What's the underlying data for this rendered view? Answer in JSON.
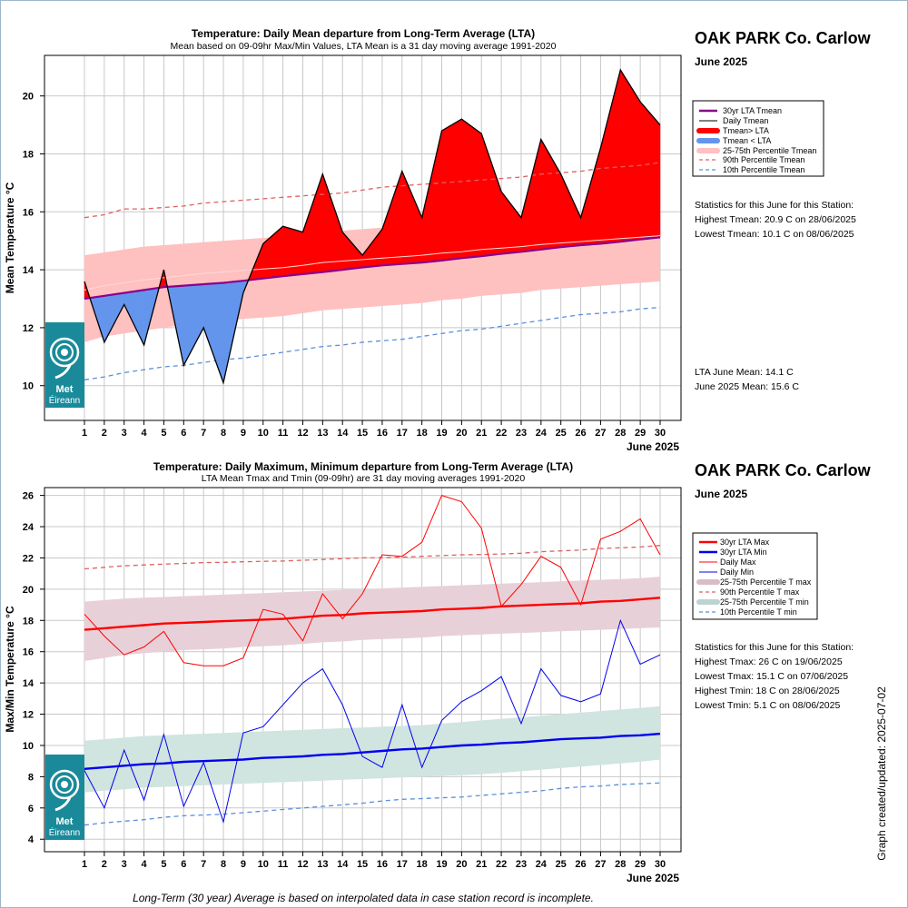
{
  "chart_data": [
    {
      "type": "line",
      "title": "Temperature: Daily Mean departure from Long-Term Average (LTA)",
      "subtitle": "Mean based on 09-09hr Max/Min Values, LTA Mean is a 31 day moving average 1991-2020",
      "ylabel": "Mean Temperature °C",
      "xlabel": "June 2025",
      "ylim": [
        8.8,
        21.4
      ],
      "yticks": [
        10,
        12,
        14,
        16,
        18,
        20
      ],
      "x": [
        1,
        2,
        3,
        4,
        5,
        6,
        7,
        8,
        9,
        10,
        11,
        12,
        13,
        14,
        15,
        16,
        17,
        18,
        19,
        20,
        21,
        22,
        23,
        24,
        25,
        26,
        27,
        28,
        29,
        30
      ],
      "grid": true,
      "legend_position": "right",
      "colors": {
        "lta": "#8b008b",
        "above": "#ff0000",
        "below": "#6495ed",
        "band": "#ffc0c0",
        "p90": "#e06060",
        "p10": "#5a8fdc"
      },
      "series": [
        {
          "name": "30yr LTA Tmean",
          "values": [
            13.0,
            13.1,
            13.2,
            13.3,
            13.4,
            13.45,
            13.5,
            13.55,
            13.62,
            13.7,
            13.78,
            13.85,
            13.92,
            14.0,
            14.08,
            14.15,
            14.2,
            14.25,
            14.32,
            14.4,
            14.47,
            14.55,
            14.62,
            14.7,
            14.78,
            14.85,
            14.9,
            14.97,
            15.05,
            15.12
          ]
        },
        {
          "name": "Daily Tmean",
          "values": [
            13.6,
            11.5,
            12.8,
            11.4,
            14.0,
            10.7,
            12.0,
            10.1,
            13.2,
            14.9,
            15.5,
            15.3,
            17.3,
            15.3,
            14.5,
            15.4,
            17.4,
            15.8,
            18.8,
            19.2,
            18.7,
            16.7,
            15.8,
            18.5,
            17.3,
            15.8,
            18.2,
            20.9,
            19.8,
            19.0
          ]
        },
        {
          "name": "25-75th Percentile Tmean",
          "lower": [
            11.5,
            11.7,
            11.8,
            11.9,
            12.0,
            12.1,
            12.2,
            12.25,
            12.3,
            12.35,
            12.4,
            12.5,
            12.6,
            12.65,
            12.7,
            12.75,
            12.8,
            12.85,
            12.95,
            13.0,
            13.1,
            13.15,
            13.2,
            13.3,
            13.35,
            13.4,
            13.45,
            13.5,
            13.55,
            13.6
          ],
          "upper": [
            14.5,
            14.6,
            14.7,
            14.8,
            14.85,
            14.9,
            14.95,
            15.0,
            15.05,
            15.1,
            15.15,
            15.2,
            15.3,
            15.35,
            15.4,
            15.45,
            15.5,
            15.55,
            15.6,
            15.65,
            15.7,
            15.75,
            15.8,
            15.85,
            15.9,
            15.95,
            16.0,
            16.05,
            16.1,
            16.15
          ]
        },
        {
          "name": "90th Percentile Tmean",
          "values": [
            15.8,
            15.9,
            16.1,
            16.1,
            16.15,
            16.2,
            16.3,
            16.35,
            16.4,
            16.45,
            16.5,
            16.55,
            16.6,
            16.65,
            16.75,
            16.85,
            16.9,
            16.95,
            17.0,
            17.05,
            17.1,
            17.15,
            17.2,
            17.3,
            17.35,
            17.4,
            17.5,
            17.55,
            17.6,
            17.7
          ]
        },
        {
          "name": "10th Percentile Tmean",
          "values": [
            10.2,
            10.3,
            10.45,
            10.55,
            10.65,
            10.7,
            10.8,
            10.9,
            10.95,
            11.05,
            11.15,
            11.25,
            11.35,
            11.4,
            11.5,
            11.55,
            11.6,
            11.7,
            11.8,
            11.9,
            11.95,
            12.05,
            12.15,
            12.25,
            12.35,
            12.45,
            12.5,
            12.55,
            12.65,
            12.7
          ]
        }
      ],
      "legend": [
        "30yr LTA Tmean",
        "Daily Tmean",
        "Tmean> LTA",
        "Tmean < LTA",
        "25-75th Percentile Tmean",
        "90th Percentile Tmean",
        "10th Percentile Tmean"
      ],
      "station_title": "OAK PARK Co. Carlow",
      "month_label": "June 2025",
      "stats_header": "Statistics for this June for this Station:",
      "stats": [
        "Highest Tmean: 20.9 C on 28/06/2025",
        "Lowest Tmean: 10.1 C on 08/06/2025"
      ],
      "means": [
        "LTA June Mean: 14.1 C",
        "June 2025 Mean: 15.6 C"
      ],
      "logo": [
        "Met",
        "Éireann"
      ]
    },
    {
      "type": "line",
      "title": "Temperature: Daily Maximum, Minimum departure from Long-Term Average (LTA)",
      "subtitle": "LTA Mean Tmax and Tmin (09-09hr) are 31 day moving averages 1991-2020",
      "ylabel": "Max/Min Temperature °C",
      "xlabel": "June 2025",
      "ylim": [
        3.2,
        26.5
      ],
      "yticks": [
        4,
        6,
        8,
        10,
        12,
        14,
        16,
        18,
        20,
        22,
        24,
        26
      ],
      "x": [
        1,
        2,
        3,
        4,
        5,
        6,
        7,
        8,
        9,
        10,
        11,
        12,
        13,
        14,
        15,
        16,
        17,
        18,
        19,
        20,
        21,
        22,
        23,
        24,
        25,
        26,
        27,
        28,
        29,
        30
      ],
      "grid": true,
      "legend_position": "right",
      "colors": {
        "max": "#ff0000",
        "min": "#0000ee",
        "max_band": "#e8d0d8",
        "min_band": "#d0e4e0",
        "p90": "#e06060",
        "p10": "#5a8fdc"
      },
      "series": [
        {
          "name": "30yr LTA Max",
          "values": [
            17.4,
            17.5,
            17.6,
            17.7,
            17.8,
            17.85,
            17.9,
            17.95,
            18.0,
            18.05,
            18.1,
            18.2,
            18.3,
            18.35,
            18.45,
            18.5,
            18.55,
            18.6,
            18.7,
            18.75,
            18.8,
            18.9,
            18.95,
            19.0,
            19.05,
            19.1,
            19.2,
            19.25,
            19.35,
            19.45
          ]
        },
        {
          "name": "30yr LTA Min",
          "values": [
            8.5,
            8.6,
            8.7,
            8.8,
            8.85,
            8.95,
            9.0,
            9.05,
            9.1,
            9.2,
            9.25,
            9.3,
            9.4,
            9.45,
            9.55,
            9.65,
            9.75,
            9.8,
            9.9,
            10.0,
            10.05,
            10.15,
            10.2,
            10.3,
            10.4,
            10.45,
            10.5,
            10.6,
            10.65,
            10.75
          ]
        },
        {
          "name": "Daily Max",
          "values": [
            18.4,
            17.0,
            15.8,
            16.3,
            17.3,
            15.3,
            15.1,
            15.1,
            15.6,
            18.7,
            18.4,
            16.7,
            19.7,
            18.1,
            19.7,
            22.2,
            22.1,
            23.0,
            26.0,
            25.6,
            23.9,
            18.9,
            20.3,
            22.1,
            21.4,
            19.0,
            23.2,
            23.7,
            24.5,
            22.2
          ]
        },
        {
          "name": "Daily Min",
          "values": [
            8.4,
            6.0,
            9.7,
            6.5,
            10.7,
            6.1,
            8.9,
            5.1,
            10.8,
            11.2,
            12.6,
            14.0,
            14.9,
            12.6,
            9.3,
            8.6,
            12.6,
            8.6,
            11.6,
            12.8,
            13.5,
            14.4,
            11.4,
            14.9,
            13.2,
            12.8,
            13.3,
            18.0,
            15.2,
            15.8
          ]
        },
        {
          "name": "25-75th Percentile T max",
          "lower": [
            15.4,
            15.6,
            15.8,
            15.9,
            16.0,
            16.1,
            16.15,
            16.2,
            16.3,
            16.35,
            16.4,
            16.5,
            16.6,
            16.65,
            16.75,
            16.8,
            16.85,
            16.9,
            17.0,
            17.05,
            17.1,
            17.15,
            17.2,
            17.25,
            17.3,
            17.35,
            17.4,
            17.45,
            17.5,
            17.55
          ],
          "upper": [
            19.2,
            19.3,
            19.4,
            19.45,
            19.5,
            19.55,
            19.6,
            19.65,
            19.7,
            19.75,
            19.8,
            19.85,
            19.9,
            19.95,
            20.0,
            20.05,
            20.1,
            20.15,
            20.2,
            20.25,
            20.3,
            20.35,
            20.4,
            20.45,
            20.5,
            20.55,
            20.6,
            20.65,
            20.7,
            20.8
          ]
        },
        {
          "name": "90th Percentile T max",
          "values": [
            21.3,
            21.4,
            21.5,
            21.55,
            21.6,
            21.65,
            21.7,
            21.72,
            21.75,
            21.78,
            21.8,
            21.85,
            21.9,
            21.95,
            22.0,
            22.02,
            22.05,
            22.1,
            22.15,
            22.2,
            22.22,
            22.25,
            22.3,
            22.4,
            22.45,
            22.5,
            22.6,
            22.65,
            22.7,
            22.8
          ]
        },
        {
          "name": "25-75th Percentile T min",
          "lower": [
            7.0,
            7.1,
            7.2,
            7.3,
            7.35,
            7.4,
            7.45,
            7.5,
            7.55,
            7.6,
            7.65,
            7.7,
            7.75,
            7.8,
            7.85,
            7.9,
            7.95,
            8.0,
            8.05,
            8.1,
            8.15,
            8.25,
            8.35,
            8.45,
            8.55,
            8.65,
            8.75,
            8.85,
            8.95,
            9.1
          ],
          "upper": [
            10.3,
            10.4,
            10.5,
            10.6,
            10.65,
            10.7,
            10.75,
            10.8,
            10.85,
            10.9,
            10.95,
            11.0,
            11.05,
            11.1,
            11.15,
            11.2,
            11.25,
            11.3,
            11.4,
            11.5,
            11.6,
            11.7,
            11.8,
            11.9,
            12.0,
            12.1,
            12.2,
            12.3,
            12.4,
            12.5
          ]
        },
        {
          "name": "10th Percentile T min",
          "values": [
            4.9,
            5.05,
            5.15,
            5.25,
            5.4,
            5.5,
            5.55,
            5.6,
            5.7,
            5.8,
            5.9,
            6.0,
            6.1,
            6.2,
            6.3,
            6.45,
            6.55,
            6.6,
            6.65,
            6.7,
            6.8,
            6.9,
            7.0,
            7.1,
            7.25,
            7.35,
            7.4,
            7.5,
            7.55,
            7.6
          ]
        }
      ],
      "legend": [
        "30yr LTA Max",
        "30yr LTA Min",
        "Daily Max",
        "Daily Min",
        "25-75th Percentile T max",
        "90th Percentile T max",
        "25-75th Percentile T min",
        "10th Percentile T min"
      ],
      "station_title": "OAK PARK Co. Carlow",
      "month_label": "June 2025",
      "stats_header": "Statistics for this June for this Station:",
      "stats": [
        "Highest Tmax: 26 C on 19/06/2025",
        "Lowest Tmax: 15.1 C on 07/06/2025",
        "Highest Tmin: 18 C on 28/06/2025",
        "Lowest Tmin: 5.1 C on 08/06/2025"
      ],
      "logo": [
        "Met",
        "Éireann"
      ]
    }
  ],
  "footer_note": "Long-Term (30 year) Average is based on interpolated data in case station record is incomplete.",
  "updated_label": "Graph created/updated:  2025-07-02"
}
